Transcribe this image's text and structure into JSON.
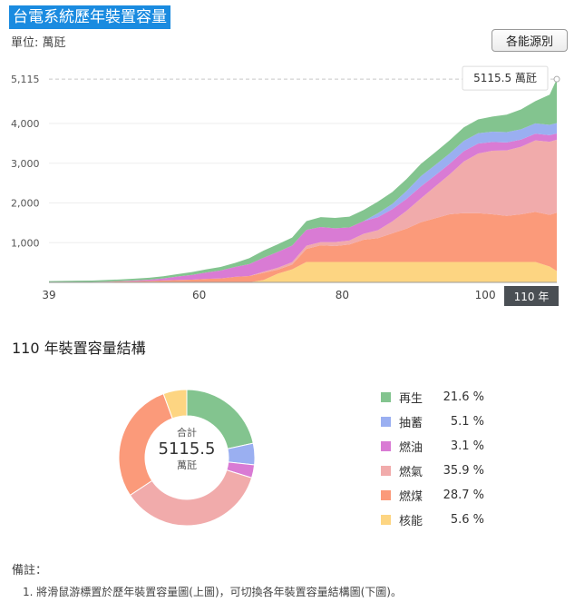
{
  "header": {
    "title": "台電系統歷年裝置容量",
    "unit": "單位: 萬瓩",
    "source_button": "各能源別"
  },
  "chart_data": [
    {
      "type": "area",
      "stacked": true,
      "years": [
        39,
        41,
        43,
        45,
        47,
        49,
        51,
        53,
        55,
        57,
        59,
        61,
        63,
        65,
        67,
        69,
        71,
        73,
        75,
        77,
        79,
        81,
        83,
        85,
        87,
        89,
        91,
        93,
        95,
        97,
        99,
        101,
        103,
        105,
        107,
        109,
        110
      ],
      "series": [
        {
          "name": "核能",
          "color": "#fdd582",
          "values": [
            0,
            0,
            0,
            0,
            0,
            0,
            0,
            0,
            0,
            0,
            0,
            0,
            0,
            0,
            0,
            60,
            220,
            330,
            514,
            514,
            514,
            514,
            514,
            514,
            514,
            514,
            514,
            514,
            514,
            514,
            514,
            514,
            514,
            514,
            514,
            400,
            286
          ]
        },
        {
          "name": "燃煤",
          "color": "#fb9a7a",
          "values": [
            5,
            8,
            10,
            12,
            16,
            25,
            30,
            38,
            50,
            60,
            70,
            90,
            100,
            140,
            160,
            180,
            100,
            120,
            330,
            420,
            400,
            440,
            560,
            600,
            720,
            840,
            1000,
            1100,
            1200,
            1230,
            1230,
            1200,
            1160,
            1200,
            1260,
            1300,
            1468
          ]
        },
        {
          "name": "燃氣",
          "color": "#f1abab",
          "values": [
            0,
            0,
            0,
            0,
            0,
            0,
            0,
            0,
            0,
            0,
            0,
            0,
            0,
            0,
            0,
            30,
            50,
            60,
            80,
            80,
            100,
            100,
            150,
            200,
            300,
            450,
            600,
            800,
            1000,
            1300,
            1500,
            1600,
            1650,
            1700,
            1800,
            1840,
            1837
          ]
        },
        {
          "name": "燃油",
          "color": "#d97bd4",
          "values": [
            0,
            0,
            0,
            0,
            5,
            10,
            20,
            30,
            50,
            90,
            120,
            160,
            200,
            250,
            300,
            350,
            400,
            420,
            400,
            380,
            350,
            330,
            320,
            330,
            310,
            300,
            300,
            280,
            270,
            260,
            250,
            220,
            200,
            180,
            170,
            165,
            159
          ]
        },
        {
          "name": "抽蓄",
          "color": "#9aaff1",
          "values": [
            0,
            0,
            0,
            0,
            0,
            0,
            0,
            0,
            0,
            0,
            0,
            0,
            0,
            0,
            0,
            0,
            0,
            0,
            0,
            0,
            0,
            0,
            0,
            100,
            130,
            200,
            260,
            260,
            260,
            260,
            260,
            260,
            260,
            260,
            260,
            260,
            261
          ]
        },
        {
          "name": "再生",
          "color": "#83c48f",
          "values": [
            27,
            30,
            32,
            35,
            38,
            40,
            45,
            50,
            55,
            60,
            70,
            80,
            90,
            100,
            150,
            180,
            190,
            200,
            220,
            250,
            260,
            270,
            280,
            290,
            300,
            300,
            310,
            320,
            330,
            340,
            350,
            380,
            440,
            500,
            560,
            760,
            1105
          ]
        }
      ],
      "x_ticks": [
        39,
        60,
        80,
        100,
        110
      ],
      "y_ticks": [
        1000,
        2000,
        3000,
        4000
      ],
      "y_tick_labels": [
        "1,000",
        "2,000",
        "3,000",
        "4,000"
      ],
      "y_max_label": "5,115",
      "ylim": [
        0,
        5600
      ],
      "xlim": [
        39,
        110
      ],
      "tooltip": "5115.5 萬瓩",
      "selected_year_label": "110 年",
      "grid": true
    },
    {
      "type": "pie",
      "donut": true,
      "title": "110 年裝置容量結構",
      "center_label": "合計",
      "center_value": "5115.5",
      "center_unit": "萬瓩",
      "slices": [
        {
          "name": "再生",
          "value": 21.6,
          "label": "21.6 %",
          "color": "#83c48f"
        },
        {
          "name": "抽蓄",
          "value": 5.1,
          "label": "5.1 %",
          "color": "#9aaff1"
        },
        {
          "name": "燃油",
          "value": 3.1,
          "label": "3.1 %",
          "color": "#d97bd4"
        },
        {
          "name": "燃氣",
          "value": 35.9,
          "label": "35.9 %",
          "color": "#f1abab"
        },
        {
          "name": "燃煤",
          "value": 28.7,
          "label": "28.7 %",
          "color": "#fb9a7a"
        },
        {
          "name": "核能",
          "value": 5.6,
          "label": "5.6 %",
          "color": "#fdd582"
        }
      ]
    }
  ],
  "notes": {
    "title": "備註：",
    "items": [
      "1. 將滑鼠游標置於歷年裝置容量圖(上圖)，可切換各年裝置容量結構圖(下圖)。"
    ]
  }
}
